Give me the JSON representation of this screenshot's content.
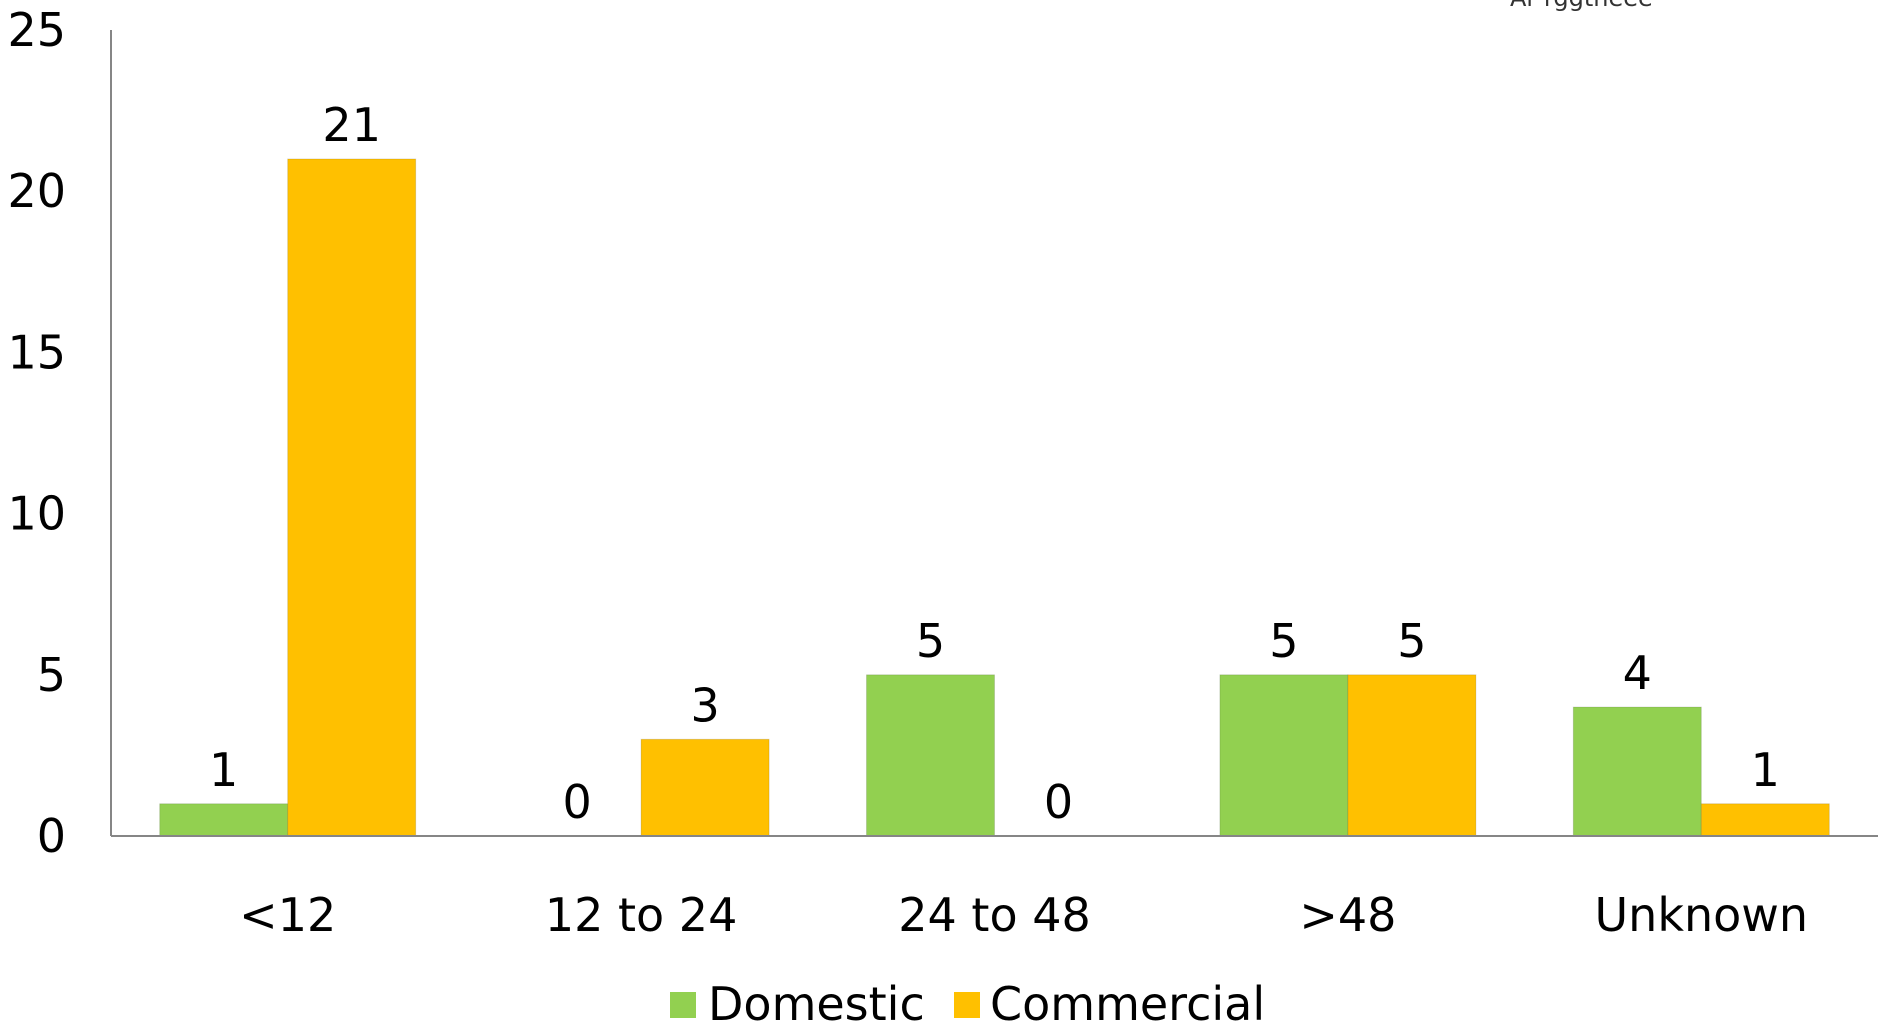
{
  "corner_text": "Ar rggtheee",
  "chart_data": {
    "type": "bar",
    "categories": [
      "<12",
      "12 to 24",
      "24 to 48",
      ">48",
      "Unknown"
    ],
    "series": [
      {
        "name": "Domestic",
        "color": "#92d050",
        "values": [
          1,
          0,
          5,
          5,
          4
        ]
      },
      {
        "name": "Commercial",
        "color": "#ffc000",
        "values": [
          21,
          3,
          0,
          5,
          1
        ]
      }
    ],
    "ylim": [
      0,
      25
    ],
    "yticks": [
      0,
      5,
      10,
      15,
      20,
      25
    ],
    "grid": false,
    "legend": "bottom-center",
    "data_labels": true
  }
}
